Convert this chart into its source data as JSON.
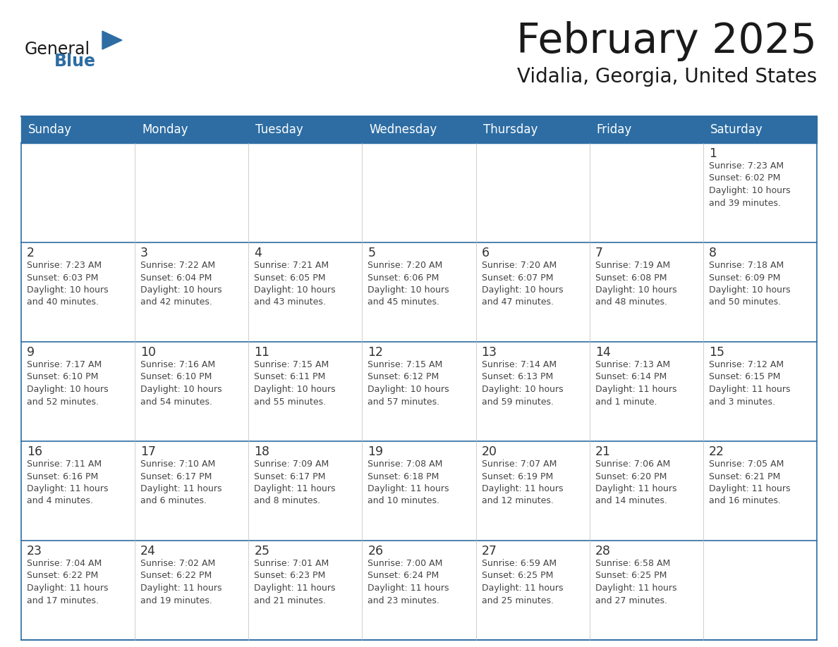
{
  "title": "February 2025",
  "subtitle": "Vidalia, Georgia, United States",
  "header_bg": "#2D6DA3",
  "header_text_color": "#FFFFFF",
  "day_names": [
    "Sunday",
    "Monday",
    "Tuesday",
    "Wednesday",
    "Thursday",
    "Friday",
    "Saturday"
  ],
  "cell_bg": "#FFFFFF",
  "cell_bg_alt": "#F0F4F8",
  "row_line_color": "#2D6DA3",
  "col_line_color": "#BBBBBB",
  "text_color": "#444444",
  "date_color": "#333333",
  "logo_general_color": "#1a1a1a",
  "logo_blue_color": "#2D6DA3",
  "weeks": [
    [
      {
        "day": "",
        "text": ""
      },
      {
        "day": "",
        "text": ""
      },
      {
        "day": "",
        "text": ""
      },
      {
        "day": "",
        "text": ""
      },
      {
        "day": "",
        "text": ""
      },
      {
        "day": "",
        "text": ""
      },
      {
        "day": "1",
        "text": "Sunrise: 7:23 AM\nSunset: 6:02 PM\nDaylight: 10 hours\nand 39 minutes."
      }
    ],
    [
      {
        "day": "2",
        "text": "Sunrise: 7:23 AM\nSunset: 6:03 PM\nDaylight: 10 hours\nand 40 minutes."
      },
      {
        "day": "3",
        "text": "Sunrise: 7:22 AM\nSunset: 6:04 PM\nDaylight: 10 hours\nand 42 minutes."
      },
      {
        "day": "4",
        "text": "Sunrise: 7:21 AM\nSunset: 6:05 PM\nDaylight: 10 hours\nand 43 minutes."
      },
      {
        "day": "5",
        "text": "Sunrise: 7:20 AM\nSunset: 6:06 PM\nDaylight: 10 hours\nand 45 minutes."
      },
      {
        "day": "6",
        "text": "Sunrise: 7:20 AM\nSunset: 6:07 PM\nDaylight: 10 hours\nand 47 minutes."
      },
      {
        "day": "7",
        "text": "Sunrise: 7:19 AM\nSunset: 6:08 PM\nDaylight: 10 hours\nand 48 minutes."
      },
      {
        "day": "8",
        "text": "Sunrise: 7:18 AM\nSunset: 6:09 PM\nDaylight: 10 hours\nand 50 minutes."
      }
    ],
    [
      {
        "day": "9",
        "text": "Sunrise: 7:17 AM\nSunset: 6:10 PM\nDaylight: 10 hours\nand 52 minutes."
      },
      {
        "day": "10",
        "text": "Sunrise: 7:16 AM\nSunset: 6:10 PM\nDaylight: 10 hours\nand 54 minutes."
      },
      {
        "day": "11",
        "text": "Sunrise: 7:15 AM\nSunset: 6:11 PM\nDaylight: 10 hours\nand 55 minutes."
      },
      {
        "day": "12",
        "text": "Sunrise: 7:15 AM\nSunset: 6:12 PM\nDaylight: 10 hours\nand 57 minutes."
      },
      {
        "day": "13",
        "text": "Sunrise: 7:14 AM\nSunset: 6:13 PM\nDaylight: 10 hours\nand 59 minutes."
      },
      {
        "day": "14",
        "text": "Sunrise: 7:13 AM\nSunset: 6:14 PM\nDaylight: 11 hours\nand 1 minute."
      },
      {
        "day": "15",
        "text": "Sunrise: 7:12 AM\nSunset: 6:15 PM\nDaylight: 11 hours\nand 3 minutes."
      }
    ],
    [
      {
        "day": "16",
        "text": "Sunrise: 7:11 AM\nSunset: 6:16 PM\nDaylight: 11 hours\nand 4 minutes."
      },
      {
        "day": "17",
        "text": "Sunrise: 7:10 AM\nSunset: 6:17 PM\nDaylight: 11 hours\nand 6 minutes."
      },
      {
        "day": "18",
        "text": "Sunrise: 7:09 AM\nSunset: 6:17 PM\nDaylight: 11 hours\nand 8 minutes."
      },
      {
        "day": "19",
        "text": "Sunrise: 7:08 AM\nSunset: 6:18 PM\nDaylight: 11 hours\nand 10 minutes."
      },
      {
        "day": "20",
        "text": "Sunrise: 7:07 AM\nSunset: 6:19 PM\nDaylight: 11 hours\nand 12 minutes."
      },
      {
        "day": "21",
        "text": "Sunrise: 7:06 AM\nSunset: 6:20 PM\nDaylight: 11 hours\nand 14 minutes."
      },
      {
        "day": "22",
        "text": "Sunrise: 7:05 AM\nSunset: 6:21 PM\nDaylight: 11 hours\nand 16 minutes."
      }
    ],
    [
      {
        "day": "23",
        "text": "Sunrise: 7:04 AM\nSunset: 6:22 PM\nDaylight: 11 hours\nand 17 minutes."
      },
      {
        "day": "24",
        "text": "Sunrise: 7:02 AM\nSunset: 6:22 PM\nDaylight: 11 hours\nand 19 minutes."
      },
      {
        "day": "25",
        "text": "Sunrise: 7:01 AM\nSunset: 6:23 PM\nDaylight: 11 hours\nand 21 minutes."
      },
      {
        "day": "26",
        "text": "Sunrise: 7:00 AM\nSunset: 6:24 PM\nDaylight: 11 hours\nand 23 minutes."
      },
      {
        "day": "27",
        "text": "Sunrise: 6:59 AM\nSunset: 6:25 PM\nDaylight: 11 hours\nand 25 minutes."
      },
      {
        "day": "28",
        "text": "Sunrise: 6:58 AM\nSunset: 6:25 PM\nDaylight: 11 hours\nand 27 minutes."
      },
      {
        "day": "",
        "text": ""
      }
    ]
  ]
}
